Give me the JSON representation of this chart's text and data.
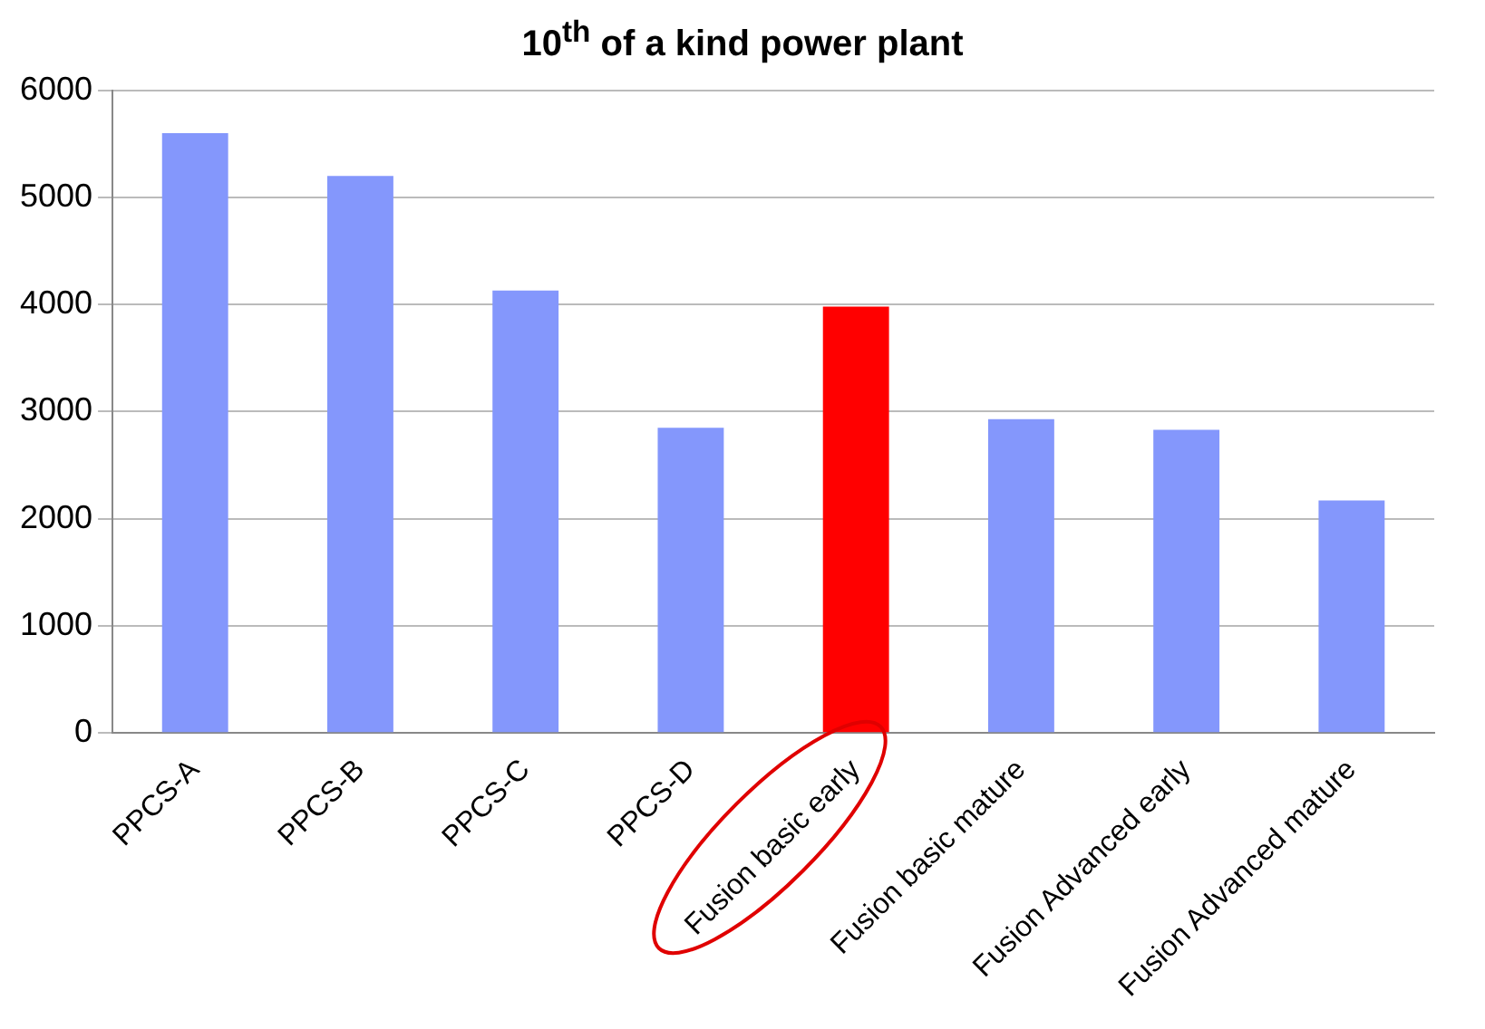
{
  "chart_data": {
    "type": "bar",
    "title": "10$^{th}$ of a kind power plant",
    "categories": [
      "PPCS-A",
      "PPCS-B",
      "PPCS-C",
      "PPCS-D",
      "Fusion basic early",
      "Fusion basic mature",
      "Fusion Advanced early",
      "Fusion Advanced mature"
    ],
    "values": [
      5600,
      5200,
      4130,
      2850,
      3980,
      2930,
      2830,
      2170
    ],
    "colors": [
      "#8497fc",
      "#8497fc",
      "#8497fc",
      "#8497fc",
      "#ff0000",
      "#8497fc",
      "#8497fc",
      "#8497fc"
    ],
    "ylim": [
      0,
      6000
    ],
    "yticks": [
      0,
      1000,
      2000,
      3000,
      4000,
      5000,
      6000
    ],
    "grid": "y",
    "legend": false
  }
}
